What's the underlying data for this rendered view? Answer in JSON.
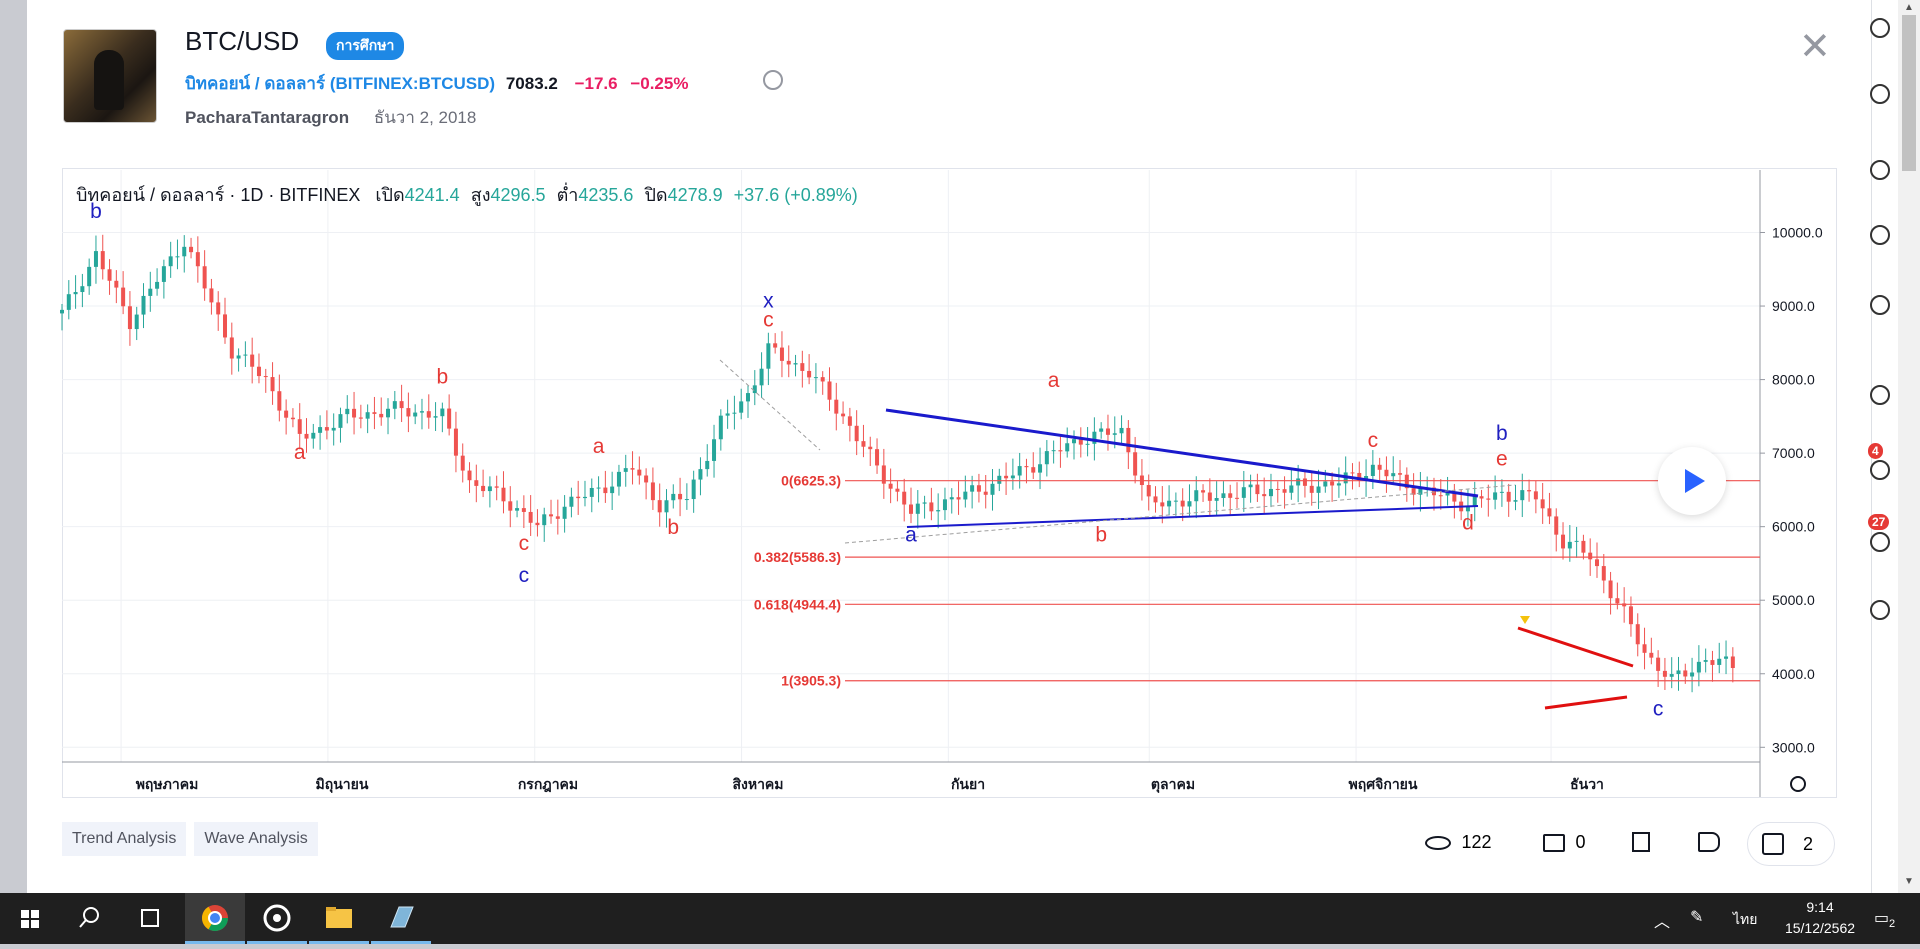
{
  "header": {
    "symbol": "BTC/USD",
    "badge": "การศึกษา",
    "instrument_name": "บิทคอยน์ / ดอลลาร์",
    "instrument_code": "(BITFINEX:BTCUSD)",
    "price": "7083.2",
    "change": "−17.6",
    "change_pct": "−0.25%",
    "author": "PacharaTantaragron",
    "date": "ธันวา 2, 2018"
  },
  "legend": {
    "name": "บิทคอยน์ / ดอลลาร์ · 1D · BITFINEX",
    "open_label": "เปิด",
    "open": "4241.4",
    "high_label": "สูง",
    "high": "4296.5",
    "low_label": "ต่ำ",
    "low": "4235.6",
    "close_label": "ปิด",
    "close": "4278.9",
    "change": "+37.6 (+0.89%)"
  },
  "chart_data": {
    "type": "candlestick",
    "y_ticks": [
      "10000.0",
      "9000.0",
      "8000.0",
      "7000.0",
      "6000.0",
      "5000.0",
      "4000.0",
      "3000.0"
    ],
    "ylim": [
      2800,
      10850
    ],
    "x_ticks": [
      "พฤษภาคม",
      "มิถุนายน",
      "กรกฎาคม",
      "สิงหาคม",
      "กันยา",
      "ตุลาคม",
      "พฤศจิกายน",
      "ธันวา"
    ],
    "fib_levels": [
      {
        "label": "0(6625.3)",
        "value": 6625.3
      },
      {
        "label": "0.382(5586.3)",
        "value": 5586.3
      },
      {
        "label": "0.618(4944.4)",
        "value": 4944.4
      },
      {
        "label": "1(3905.3)",
        "value": 3905.3
      }
    ],
    "wave_labels": [
      {
        "text": "b",
        "color": "#2020c0",
        "day": 5,
        "value": 10200
      },
      {
        "text": "a",
        "color": "#e53935",
        "day": 35,
        "value": 6920
      },
      {
        "text": "b",
        "color": "#e53935",
        "day": 56,
        "value": 7950
      },
      {
        "text": "c",
        "color": "#e53935",
        "day": 68,
        "value": 5680
      },
      {
        "text": "c",
        "color": "#2020c0",
        "day": 68,
        "value": 5250
      },
      {
        "text": "a",
        "color": "#e53935",
        "day": 79,
        "value": 7000
      },
      {
        "text": "b",
        "color": "#e53935",
        "day": 90,
        "value": 5900
      },
      {
        "text": "x",
        "color": "#2020c0",
        "day": 104,
        "value": 8980
      },
      {
        "text": "c",
        "color": "#e53935",
        "day": 104,
        "value": 8720
      },
      {
        "text": "a",
        "color": "#2020c0",
        "day": 125,
        "value": 5800
      },
      {
        "text": "a",
        "color": "#e53935",
        "day": 146,
        "value": 7900
      },
      {
        "text": "b",
        "color": "#e53935",
        "day": 153,
        "value": 5800
      },
      {
        "text": "c",
        "color": "#e53935",
        "day": 193,
        "value": 7080
      },
      {
        "text": "d",
        "color": "#e53935",
        "day": 207,
        "value": 5960
      },
      {
        "text": "b",
        "color": "#2020c0",
        "day": 212,
        "value": 7180
      },
      {
        "text": "e",
        "color": "#e53935",
        "day": 212,
        "value": 6830
      },
      {
        "text": "c",
        "color": "#2020c0",
        "day": 235,
        "value": 3430
      }
    ]
  },
  "tags": [
    "Trend Analysis",
    "Wave Analysis"
  ],
  "stats": {
    "views": "122",
    "comments": "0",
    "likes": "2"
  },
  "taskbar": {
    "lang": "ไทย",
    "time": "9:14",
    "date": "15/12/2562",
    "notif": "2"
  },
  "gutter": {
    "badge1": "4",
    "badge2": "27"
  }
}
